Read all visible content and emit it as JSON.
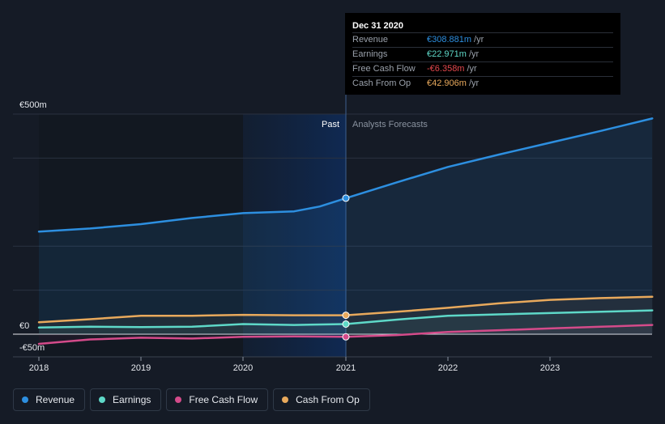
{
  "chart_data": {
    "type": "line",
    "title": "",
    "xlabel": "",
    "ylabel": "",
    "x_ticks": [
      "2018",
      "2019",
      "2020",
      "2021",
      "2022",
      "2023"
    ],
    "y_axis": {
      "top_label": "€500m",
      "zero_label": "€0",
      "bottom_label": "-€50m",
      "ylim": [
        -50,
        500
      ]
    },
    "x_range": [
      2018.0,
      2024.0
    ],
    "past_label": "Past",
    "forecast_label": "Analysts Forecasts",
    "divider_x": 2021.0,
    "series": [
      {
        "name": "Revenue",
        "color": "#2d8fe0",
        "points": [
          [
            2018.0,
            233
          ],
          [
            2018.5,
            240
          ],
          [
            2019.0,
            250
          ],
          [
            2019.5,
            264
          ],
          [
            2020.0,
            275
          ],
          [
            2020.5,
            279
          ],
          [
            2020.75,
            290
          ],
          [
            2021.0,
            309
          ],
          [
            2021.5,
            345
          ],
          [
            2022.0,
            380
          ],
          [
            2022.5,
            408
          ],
          [
            2023.0,
            435
          ],
          [
            2023.5,
            462
          ],
          [
            2024.0,
            490
          ]
        ]
      },
      {
        "name": "Earnings",
        "color": "#5ed8c8",
        "points": [
          [
            2018.0,
            15
          ],
          [
            2018.5,
            17
          ],
          [
            2019.0,
            16
          ],
          [
            2019.5,
            17
          ],
          [
            2020.0,
            23
          ],
          [
            2020.5,
            21
          ],
          [
            2021.0,
            23
          ],
          [
            2021.5,
            33
          ],
          [
            2022.0,
            42
          ],
          [
            2022.5,
            45
          ],
          [
            2023.0,
            48
          ],
          [
            2023.5,
            51
          ],
          [
            2024.0,
            54
          ]
        ]
      },
      {
        "name": "Free Cash Flow",
        "color": "#d44b8a",
        "points": [
          [
            2018.0,
            -22
          ],
          [
            2018.5,
            -12
          ],
          [
            2019.0,
            -8
          ],
          [
            2019.5,
            -10
          ],
          [
            2020.0,
            -6
          ],
          [
            2020.5,
            -5
          ],
          [
            2021.0,
            -6
          ],
          [
            2021.5,
            -2
          ],
          [
            2022.0,
            5
          ],
          [
            2022.5,
            9
          ],
          [
            2023.0,
            13
          ],
          [
            2023.5,
            17
          ],
          [
            2024.0,
            21
          ]
        ]
      },
      {
        "name": "Cash From Op",
        "color": "#e8a95c",
        "points": [
          [
            2018.0,
            27
          ],
          [
            2018.5,
            34
          ],
          [
            2019.0,
            42
          ],
          [
            2019.5,
            42
          ],
          [
            2020.0,
            44
          ],
          [
            2020.5,
            43
          ],
          [
            2021.0,
            43
          ],
          [
            2021.5,
            51
          ],
          [
            2022.0,
            60
          ],
          [
            2022.5,
            70
          ],
          [
            2023.0,
            78
          ],
          [
            2023.5,
            82
          ],
          [
            2024.0,
            85
          ]
        ]
      }
    ],
    "tooltip": {
      "date": "Dec 31 2020",
      "rows": [
        {
          "label": "Revenue",
          "value": "€308.881m",
          "unit": "/yr",
          "color": "#2d8fe0"
        },
        {
          "label": "Earnings",
          "value": "€22.971m",
          "unit": "/yr",
          "color": "#5ed8c8"
        },
        {
          "label": "Free Cash Flow",
          "value": "-€6.358m",
          "unit": "/yr",
          "color": "#e5484d"
        },
        {
          "label": "Cash From Op",
          "value": "€42.906m",
          "unit": "/yr",
          "color": "#e8a95c"
        }
      ]
    }
  },
  "legend": [
    {
      "label": "Revenue",
      "color": "#2d8fe0"
    },
    {
      "label": "Earnings",
      "color": "#5ed8c8"
    },
    {
      "label": "Free Cash Flow",
      "color": "#d44b8a"
    },
    {
      "label": "Cash From Op",
      "color": "#e8a95c"
    }
  ]
}
